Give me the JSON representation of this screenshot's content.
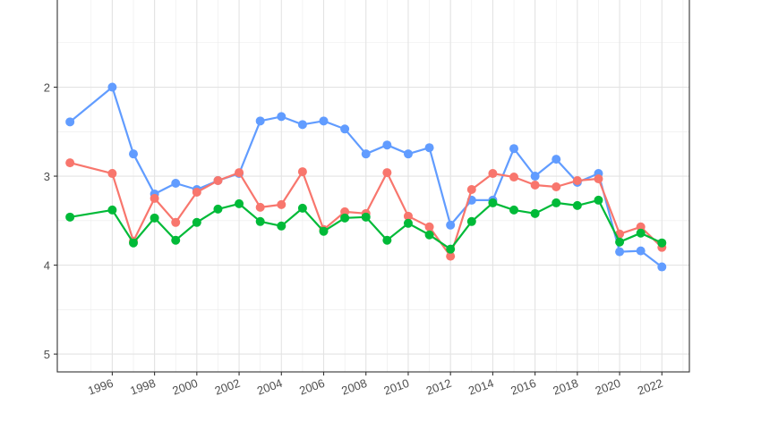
{
  "chart_data": {
    "type": "line",
    "title": "",
    "xlabel": "",
    "ylabel": "",
    "x_tick_labels": [
      "1996",
      "1998",
      "2000",
      "2002",
      "2004",
      "2006",
      "2008",
      "2010",
      "2012",
      "2014",
      "2016",
      "2018",
      "2020",
      "2022"
    ],
    "y_tick_labels": [
      "2",
      "3",
      "4",
      "5"
    ],
    "xlim": [
      1993.4,
      2023.3
    ],
    "ylim": [
      5.2,
      1.0
    ],
    "y_reversed": true,
    "grid": true,
    "legend": "none",
    "series": [
      {
        "color": "#619cff",
        "points": [
          [
            1994,
            2.39
          ],
          [
            1996,
            2.0
          ],
          [
            1997,
            2.75
          ],
          [
            1998,
            3.2
          ],
          [
            1999,
            3.08
          ],
          [
            2000,
            3.15
          ],
          [
            2001,
            3.05
          ],
          [
            2002,
            2.97
          ],
          [
            2003,
            2.38
          ],
          [
            2004,
            2.33
          ],
          [
            2005,
            2.42
          ],
          [
            2006,
            2.38
          ],
          [
            2007,
            2.47
          ],
          [
            2008,
            2.75
          ],
          [
            2009,
            2.65
          ],
          [
            2010,
            2.75
          ],
          [
            2011,
            2.68
          ],
          [
            2012,
            3.55
          ],
          [
            2013,
            3.27
          ],
          [
            2014,
            3.27
          ],
          [
            2015,
            2.69
          ],
          [
            2016,
            3.0
          ],
          [
            2017,
            2.81
          ],
          [
            2018,
            3.07
          ],
          [
            2019,
            2.97
          ],
          [
            2020,
            3.85
          ],
          [
            2021,
            3.84
          ],
          [
            2022,
            4.02
          ]
        ]
      },
      {
        "color": "#f8766d",
        "points": [
          [
            1994,
            2.85
          ],
          [
            1996,
            2.97
          ],
          [
            1997,
            3.73
          ],
          [
            1998,
            3.25
          ],
          [
            1999,
            3.52
          ],
          [
            2000,
            3.18
          ],
          [
            2001,
            3.05
          ],
          [
            2002,
            2.96
          ],
          [
            2003,
            3.35
          ],
          [
            2004,
            3.32
          ],
          [
            2005,
            2.95
          ],
          [
            2006,
            3.6
          ],
          [
            2007,
            3.4
          ],
          [
            2008,
            3.42
          ],
          [
            2009,
            2.96
          ],
          [
            2010,
            3.45
          ],
          [
            2011,
            3.57
          ],
          [
            2012,
            3.9
          ],
          [
            2013,
            3.15
          ],
          [
            2014,
            2.97
          ],
          [
            2015,
            3.01
          ],
          [
            2016,
            3.1
          ],
          [
            2017,
            3.12
          ],
          [
            2018,
            3.05
          ],
          [
            2019,
            3.03
          ],
          [
            2020,
            3.65
          ],
          [
            2021,
            3.57
          ],
          [
            2022,
            3.8
          ]
        ]
      },
      {
        "color": "#00ba38",
        "points": [
          [
            1994,
            3.46
          ],
          [
            1996,
            3.38
          ],
          [
            1997,
            3.75
          ],
          [
            1998,
            3.47
          ],
          [
            1999,
            3.72
          ],
          [
            2000,
            3.52
          ],
          [
            2001,
            3.37
          ],
          [
            2002,
            3.31
          ],
          [
            2003,
            3.51
          ],
          [
            2004,
            3.56
          ],
          [
            2005,
            3.36
          ],
          [
            2006,
            3.62
          ],
          [
            2007,
            3.47
          ],
          [
            2008,
            3.46
          ],
          [
            2009,
            3.72
          ],
          [
            2010,
            3.53
          ],
          [
            2011,
            3.66
          ],
          [
            2012,
            3.82
          ],
          [
            2013,
            3.51
          ],
          [
            2014,
            3.3
          ],
          [
            2015,
            3.38
          ],
          [
            2016,
            3.42
          ],
          [
            2017,
            3.3
          ],
          [
            2018,
            3.33
          ],
          [
            2019,
            3.27
          ],
          [
            2020,
            3.74
          ],
          [
            2021,
            3.64
          ],
          [
            2022,
            3.75
          ]
        ]
      }
    ]
  }
}
